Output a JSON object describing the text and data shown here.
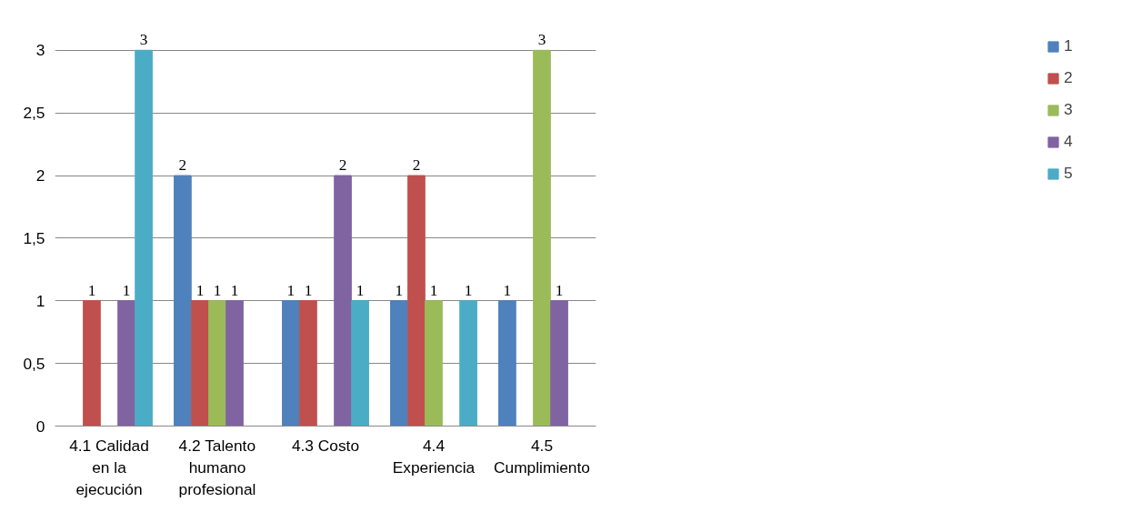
{
  "chart_data": {
    "type": "bar",
    "categories": [
      "4.1 Calidad en la ejecución",
      "4.2 Talento humano profesional",
      "4.3 Costo",
      "4.4 Experiencia",
      "4.5 Cumplimiento"
    ],
    "series": [
      {
        "name": "1",
        "color": "#4f81bd",
        "values": [
          null,
          2,
          1,
          1,
          1
        ]
      },
      {
        "name": "2",
        "color": "#c0504d",
        "values": [
          1,
          1,
          1,
          2,
          null
        ]
      },
      {
        "name": "3",
        "color": "#9bbb59",
        "values": [
          null,
          1,
          null,
          1,
          3
        ]
      },
      {
        "name": "4",
        "color": "#8064a2",
        "values": [
          1,
          1,
          2,
          null,
          1
        ]
      },
      {
        "name": "5",
        "color": "#4bacc6",
        "values": [
          3,
          null,
          1,
          1,
          null
        ]
      }
    ],
    "ylim": [
      0,
      3
    ],
    "yticks": [
      0,
      {
        "value": 0.5,
        "label": "0,5"
      },
      1,
      {
        "value": 1.5,
        "label": "1,5"
      },
      2,
      {
        "value": 2.5,
        "label": "2,5"
      },
      3
    ],
    "grid": "y",
    "legend": "right",
    "data_labels": true
  }
}
